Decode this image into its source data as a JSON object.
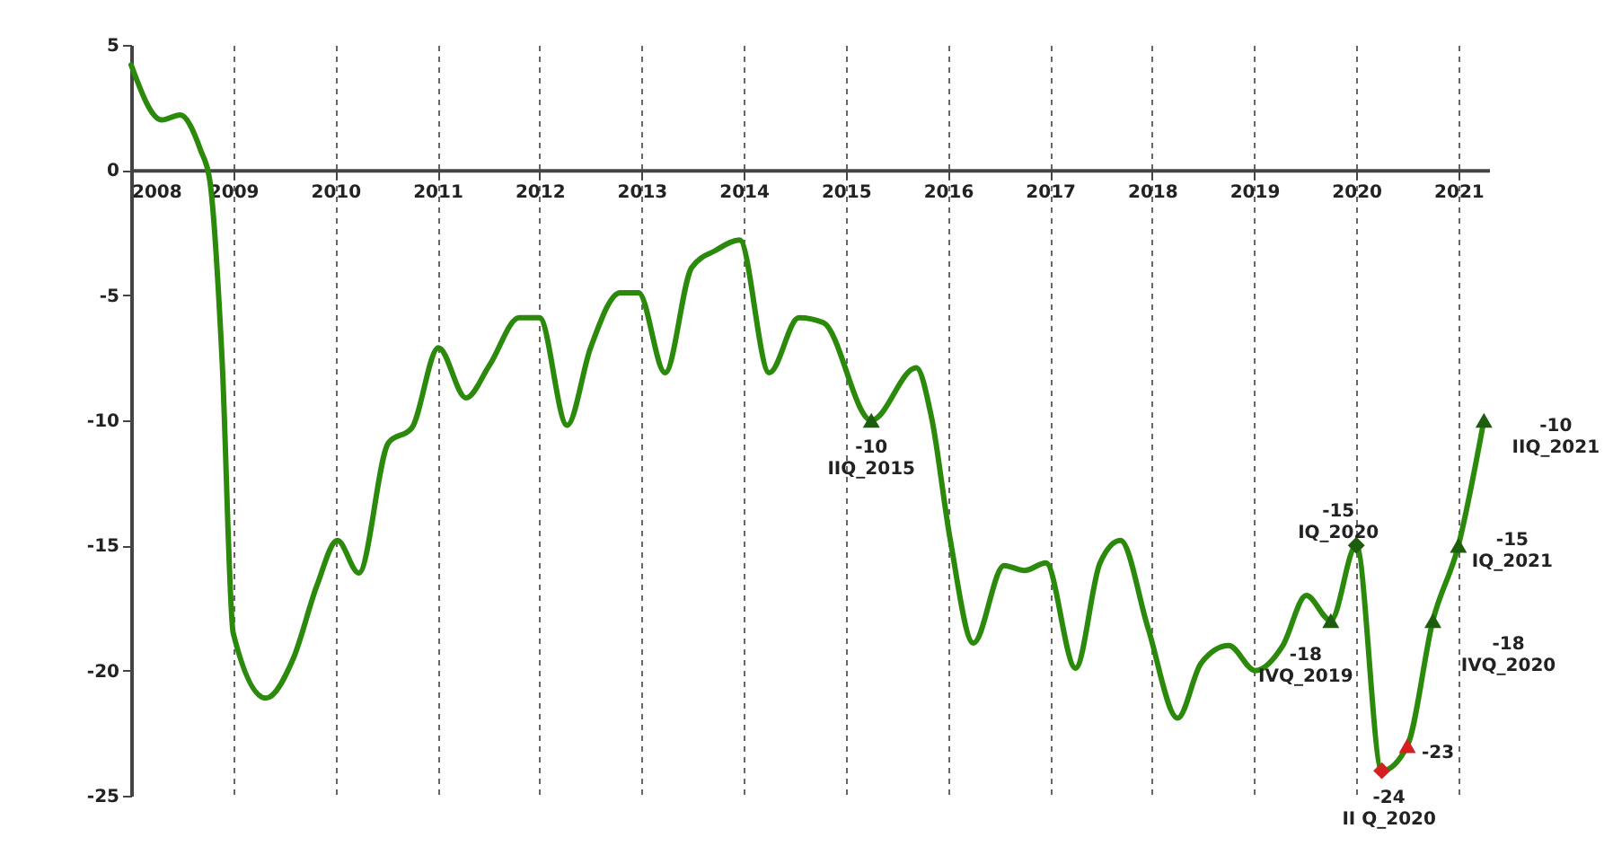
{
  "chart_data": {
    "type": "line",
    "xlim": [
      2008,
      2021.3
    ],
    "ylim": [
      -25,
      5
    ],
    "xticks": [
      2008,
      2009,
      2010,
      2011,
      2012,
      2013,
      2014,
      2015,
      2016,
      2017,
      2018,
      2019,
      2020,
      2021
    ],
    "yticks": [
      -25,
      -20,
      -15,
      -10,
      -5,
      0,
      5
    ],
    "grid": "x",
    "series": [
      {
        "color": "#2b8a0b",
        "x": [
          2008.0,
          2008.3,
          2008.48,
          2008.68,
          2008.77,
          2008.89,
          2009.0,
          2009.32,
          2009.59,
          2009.82,
          2010.02,
          2010.23,
          2010.52,
          2010.75,
          2011.01,
          2011.28,
          2011.51,
          2011.8,
          2012.0,
          2012.27,
          2012.5,
          2012.79,
          2012.97,
          2013.23,
          2013.49,
          2013.73,
          2013.96,
          2014.25,
          2014.54,
          2014.78,
          2015.25,
          2015.69,
          2015.84,
          2016.02,
          2016.25,
          2016.55,
          2016.75,
          2016.96,
          2017.25,
          2017.49,
          2017.69,
          2017.96,
          2018.25,
          2018.48,
          2018.75,
          2019.01,
          2019.28,
          2019.51,
          2019.75,
          2020.0,
          2020.25,
          2020.5,
          2020.75,
          2021.0,
          2021.25
        ],
        "values": [
          4.2,
          2.0,
          2.2,
          0.8,
          -0.4,
          -7.5,
          -18.5,
          -21.1,
          -19.5,
          -16.6,
          -14.8,
          -16.1,
          -10.9,
          -10.3,
          -7.1,
          -9.1,
          -7.8,
          -5.9,
          -5.9,
          -10.2,
          -7.1,
          -4.9,
          -4.9,
          -8.1,
          -3.9,
          -3.2,
          -2.8,
          -8.1,
          -5.9,
          -6.1,
          -10,
          -7.9,
          -9.9,
          -14.7,
          -18.9,
          -15.8,
          -16.0,
          -15.7,
          -19.9,
          -15.7,
          -14.8,
          -18.3,
          -21.9,
          -19.7,
          -19.0,
          -20.0,
          -19.0,
          -17.0,
          -18,
          -15,
          -24,
          -23,
          -18,
          -15,
          -10
        ]
      },
      {
        "type": "scatter",
        "marker": "triangle",
        "colors": [
          "#1d5e0e",
          "#1d5e0e",
          "#d42020",
          "#1d5e0e",
          "#1d5e0e",
          "#1d5e0e"
        ],
        "x": [
          2015.25,
          2019.75,
          2020.5,
          2020.75,
          2021.0,
          2021.25
        ],
        "values": [
          -10,
          -18,
          -23,
          -18,
          -15,
          -10
        ]
      },
      {
        "type": "scatter",
        "marker": "diamond",
        "colors": [
          "#1d5e0e",
          "#d42020"
        ],
        "x": [
          2020.0,
          2020.25
        ],
        "values": [
          -15,
          -24
        ]
      }
    ],
    "annotations": [
      {
        "text": "-10\nIIQ_2015",
        "x": 2015.25,
        "y": -10
      },
      {
        "text": "-18\nIVQ_2019",
        "x": 2019.75,
        "y": -18
      },
      {
        "text": "-15\nIQ_2020",
        "x": 2020.0,
        "y": -15
      },
      {
        "text": "-24\nII Q_2020",
        "x": 2020.25,
        "y": -24
      },
      {
        "text": "-23",
        "x": 2020.5,
        "y": -23
      },
      {
        "text": "-18\nIVQ_2020",
        "x": 2020.75,
        "y": -18
      },
      {
        "text": "-15\nIQ_2021",
        "x": 2021.0,
        "y": -15
      },
      {
        "text": "-10\nIIQ_2021",
        "x": 2021.25,
        "y": -10
      }
    ]
  }
}
